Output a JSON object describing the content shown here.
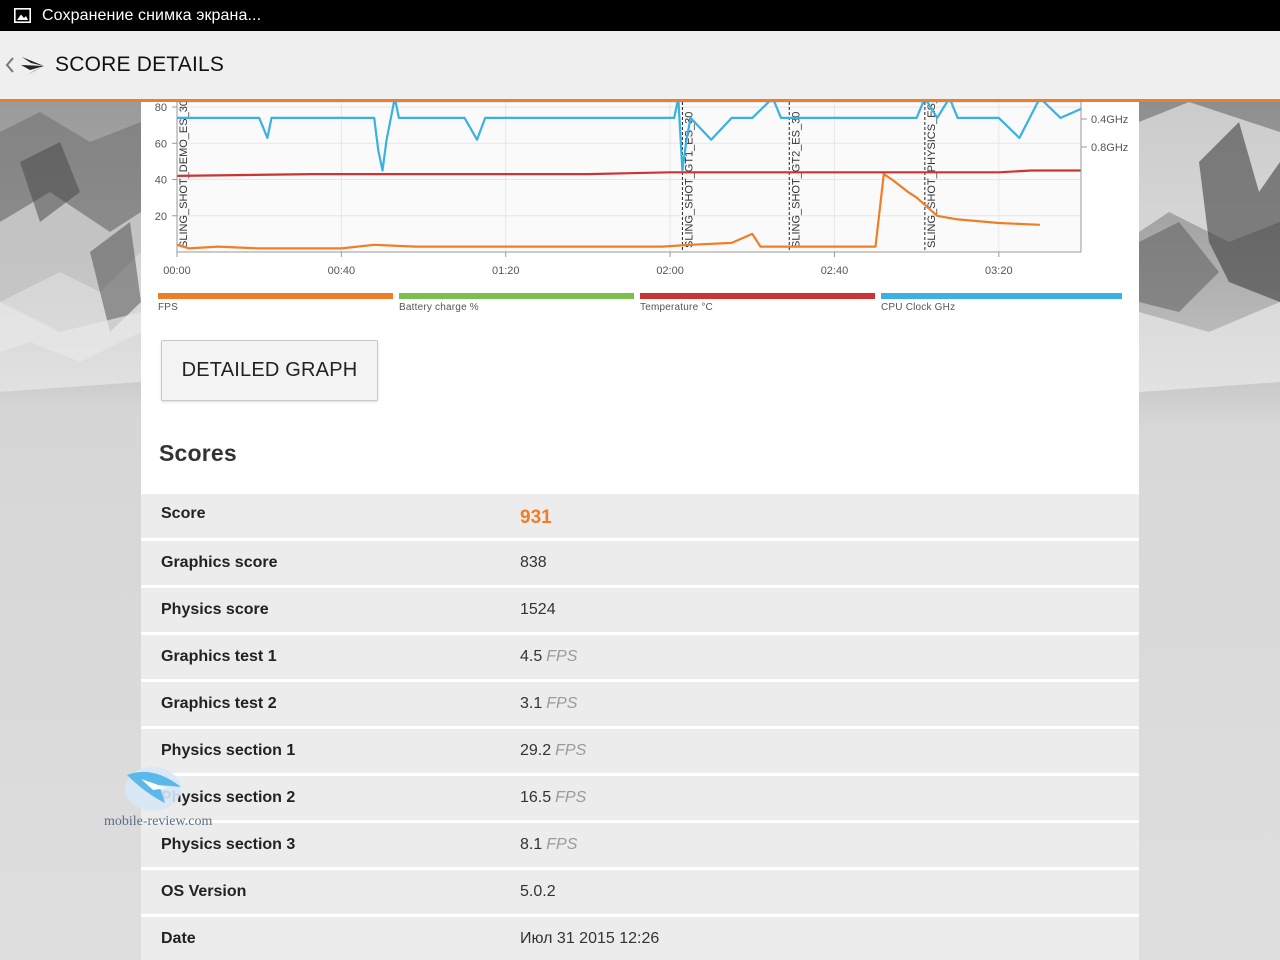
{
  "status_bar": {
    "text": "Сохранение снимка экрана..."
  },
  "app_bar": {
    "title": "SCORE DETAILS"
  },
  "chart_data": {
    "type": "line",
    "x_ticks": [
      "00:00",
      "00:40",
      "01:20",
      "02:00",
      "02:40",
      "03:20"
    ],
    "y_left_ticks": [
      "80",
      "60",
      "40",
      "20"
    ],
    "y_right_ticks": [
      "0.8GHz",
      "0.4GHz"
    ],
    "markers": [
      "SLING_SHOT_DEMO_ES_30",
      "SLING_SHOT_GT1_ES_30",
      "SLING_SHOT_GT2_ES_30",
      "SLING_SHOT_PHYSICS_ES_30"
    ],
    "marker_x_seconds": [
      0,
      123,
      149,
      182
    ],
    "ylim": [
      0,
      85
    ],
    "xlim_seconds": [
      0,
      220
    ],
    "series": [
      {
        "name": "FPS",
        "color": "#f07e26",
        "x": [
          0,
          3,
          10,
          20,
          40,
          48,
          58,
          70,
          96,
          110,
          118,
          125,
          135,
          140,
          142,
          145,
          150,
          160,
          170,
          172,
          174,
          178,
          180,
          185,
          190,
          200,
          210
        ],
        "y": [
          4,
          2,
          3,
          2,
          2,
          4,
          3,
          3,
          3,
          3,
          3,
          4,
          5,
          10,
          3,
          3,
          3,
          3,
          3,
          43,
          40,
          33,
          30,
          20,
          18,
          16,
          15
        ]
      },
      {
        "name": "Battery charge %",
        "color": "#7bc04a",
        "x": [],
        "y": []
      },
      {
        "name": "Temperature °C",
        "color": "#cc3333",
        "x": [
          0,
          33,
          60,
          100,
          120,
          140,
          160,
          180,
          200,
          208,
          220
        ],
        "y": [
          42,
          43,
          43,
          43,
          44,
          44,
          44,
          44,
          44,
          45,
          45
        ]
      },
      {
        "name": "CPU Clock GHz",
        "color": "#3ab1e3",
        "x": [
          0,
          20,
          22,
          23,
          24,
          48,
          49,
          50,
          51,
          53,
          54,
          70,
          73,
          75,
          108,
          118,
          121,
          122,
          123,
          124,
          125,
          130,
          135,
          140,
          145,
          147,
          180,
          182,
          185,
          188,
          190,
          200,
          205,
          210,
          215,
          220
        ],
        "y": [
          74,
          74,
          63,
          74,
          74,
          74,
          56,
          45,
          62,
          85,
          74,
          74,
          62,
          74,
          74,
          74,
          74,
          85,
          45,
          62,
          74,
          62,
          74,
          74,
          85,
          74,
          74,
          85,
          74,
          85,
          74,
          74,
          63,
          85,
          74,
          79
        ]
      }
    ]
  },
  "detailed_graph_button": {
    "label": "DETAILED GRAPH"
  },
  "scores": {
    "heading": "Scores",
    "rows": [
      {
        "label": "Score",
        "value": "931",
        "unit": ""
      },
      {
        "label": "Graphics score",
        "value": "838",
        "unit": ""
      },
      {
        "label": "Physics score",
        "value": "1524",
        "unit": ""
      },
      {
        "label": "Graphics test 1",
        "value": "4.5",
        "unit": "FPS"
      },
      {
        "label": "Graphics test 2",
        "value": "3.1",
        "unit": "FPS"
      },
      {
        "label": "Physics section 1",
        "value": "29.2",
        "unit": "FPS"
      },
      {
        "label": "Physics section 2",
        "value": "16.5",
        "unit": "FPS"
      },
      {
        "label": "Physics section 3",
        "value": "8.1",
        "unit": "FPS"
      },
      {
        "label": "OS Version",
        "value": "5.0.2",
        "unit": ""
      },
      {
        "label": "Date",
        "value": "Июл 31 2015 12:26",
        "unit": ""
      }
    ]
  },
  "watermark": {
    "text": "mobile-review.com"
  }
}
